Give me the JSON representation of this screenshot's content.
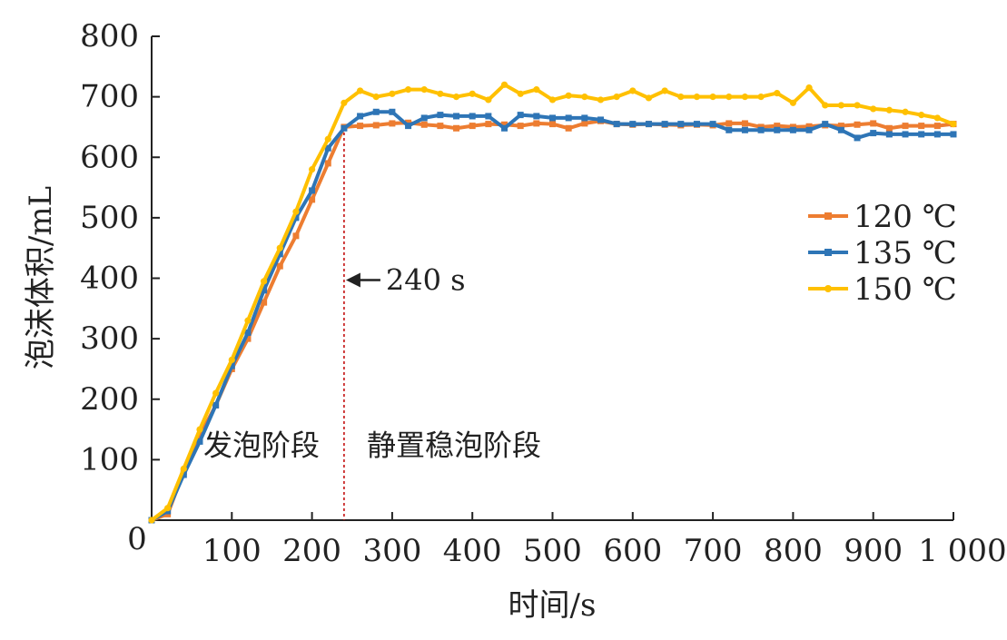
{
  "chart_data": {
    "type": "line",
    "title": "",
    "xlabel": "时间/s",
    "ylabel": "泡沫体积/mL",
    "xlim": [
      0,
      1000
    ],
    "ylim": [
      0,
      800
    ],
    "x_ticks": [
      0,
      100,
      200,
      300,
      400,
      500,
      600,
      700,
      800,
      900,
      1000
    ],
    "x_tick_labels": [
      "0",
      "100",
      "200",
      "300",
      "400",
      "500",
      "600",
      "700",
      "800",
      "900",
      "1 000"
    ],
    "y_ticks": [
      0,
      100,
      200,
      300,
      400,
      500,
      600,
      700,
      800
    ],
    "y_tick_labels": [
      "0",
      "100",
      "200",
      "300",
      "400",
      "500",
      "600",
      "700",
      "800"
    ],
    "grid": false,
    "legend_position": "right",
    "x": [
      0,
      20,
      40,
      60,
      80,
      100,
      120,
      140,
      160,
      180,
      200,
      220,
      240,
      260,
      280,
      300,
      320,
      340,
      360,
      380,
      400,
      420,
      440,
      460,
      480,
      500,
      520,
      540,
      560,
      580,
      600,
      620,
      640,
      660,
      680,
      700,
      720,
      740,
      760,
      780,
      800,
      820,
      840,
      860,
      880,
      900,
      920,
      940,
      960,
      980,
      1000
    ],
    "series": [
      {
        "name": "120 ℃",
        "color": "#ED7D31",
        "values": [
          0,
          10,
          80,
          140,
          190,
          250,
          300,
          360,
          420,
          470,
          530,
          590,
          650,
          652,
          653,
          656,
          657,
          654,
          652,
          648,
          652,
          655,
          654,
          652,
          656,
          655,
          648,
          656,
          660,
          655,
          654,
          655,
          654,
          653,
          654,
          653,
          656,
          656,
          650,
          652,
          650,
          651,
          653,
          652,
          654,
          656,
          648,
          652,
          652,
          652,
          655
        ]
      },
      {
        "name": "135 ℃",
        "color": "#2E75B6",
        "values": [
          0,
          15,
          75,
          130,
          190,
          255,
          310,
          380,
          440,
          500,
          545,
          615,
          648,
          668,
          675,
          675,
          652,
          665,
          670,
          668,
          668,
          668,
          648,
          670,
          668,
          665,
          665,
          665,
          662,
          655,
          655,
          655,
          655,
          655,
          655,
          655,
          645,
          645,
          645,
          645,
          645,
          645,
          655,
          645,
          632,
          640,
          638,
          638,
          638,
          638,
          638
        ]
      },
      {
        "name": "150 ℃",
        "color": "#FFC000",
        "values": [
          0,
          20,
          85,
          150,
          210,
          265,
          330,
          395,
          450,
          510,
          580,
          630,
          690,
          710,
          700,
          705,
          712,
          712,
          705,
          700,
          705,
          695,
          720,
          705,
          712,
          695,
          702,
          700,
          695,
          700,
          710,
          698,
          710,
          700,
          700,
          700,
          700,
          700,
          700,
          706,
          690,
          715,
          686,
          686,
          686,
          680,
          678,
          675,
          670,
          665,
          655
        ]
      }
    ],
    "annotations": [
      {
        "text": "240 s",
        "x": 240,
        "y": 400,
        "arrow": "left",
        "vline_x": 240
      },
      {
        "text": "发泡阶段",
        "x": 140,
        "y": 110
      },
      {
        "text": "静置稳泡阶段",
        "x": 420,
        "y": 110
      }
    ]
  }
}
